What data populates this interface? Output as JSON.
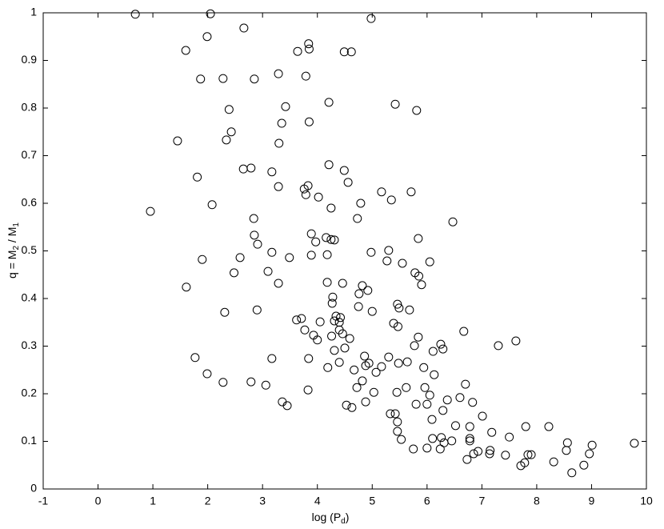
{
  "chart_data": {
    "type": "scatter",
    "x_label_parts": [
      "log (P",
      "d",
      ")"
    ],
    "y_label_parts": [
      "q = M",
      "2",
      " / M",
      "1"
    ],
    "xlim": [
      -1,
      10
    ],
    "ylim": [
      0,
      1
    ],
    "xticks": [
      -1,
      0,
      1,
      2,
      3,
      4,
      5,
      6,
      7,
      8,
      9,
      10
    ],
    "yticks": [
      0,
      0.1,
      0.2,
      0.3,
      0.4,
      0.5,
      0.6,
      0.7,
      0.8,
      0.9,
      1
    ],
    "grid": false,
    "color": "#000000",
    "marker": "open-circle",
    "x": [
      0.68,
      2.05,
      4.98,
      2.66,
      1.99,
      3.84,
      3.85,
      1.6,
      3.64,
      4.49,
      4.62,
      3.29,
      3.79,
      1.87,
      2.28,
      2.85,
      4.21,
      5.42,
      3.42,
      2.39,
      5.81,
      3.85,
      3.35,
      2.43,
      2.34,
      1.45,
      3.3,
      1.81,
      2.65,
      2.79,
      4.21,
      3.17,
      4.49,
      3.29,
      3.76,
      3.83,
      4.56,
      3.79,
      4.02,
      5.17,
      5.71,
      4.79,
      5.35,
      4.25,
      2.08,
      0.955,
      4.73,
      2.84,
      6.47,
      2.85,
      3.89,
      4.16,
      4.25,
      4.31,
      5.84,
      3.97,
      2.91,
      5.3,
      3.17,
      4.98,
      4.18,
      3.89,
      1.9,
      2.59,
      3.49,
      5.27,
      5.55,
      6.05,
      2.48,
      3.1,
      5.78,
      5.85,
      4.18,
      3.29,
      4.46,
      5.9,
      1.61,
      4.82,
      4.92,
      4.76,
      4.28,
      4.27,
      5.46,
      5.49,
      4.75,
      5.68,
      5.0,
      2.31,
      2.9,
      4.34,
      3.71,
      4.42,
      3.62,
      4.31,
      4.4,
      4.05,
      5.39,
      5.47,
      4.4,
      3.77,
      4.46,
      3.93,
      4.26,
      4.0,
      4.59,
      5.84,
      6.67,
      7.62,
      3.84,
      5.77,
      6.25,
      6.29,
      7.3,
      4.5,
      4.31,
      6.11,
      5.3,
      4.86,
      3.17,
      1.77,
      4.4,
      4.94,
      5.64,
      5.48,
      4.88,
      5.17,
      5.94,
      4.19,
      6.13,
      4.67,
      5.07,
      1.99,
      6.7,
      2.79,
      2.28,
      4.82,
      3.06,
      5.96,
      5.62,
      3.83,
      5.03,
      5.45,
      4.72,
      6.05,
      6.6,
      6.83,
      6.37,
      6.0,
      4.88,
      3.36,
      3.45,
      4.53,
      4.63,
      5.8,
      6.29,
      5.33,
      5.42,
      7.01,
      5.46,
      6.09,
      6.52,
      7.8,
      6.78,
      8.22,
      5.46,
      7.18,
      6.26,
      7.5,
      6.1,
      6.78,
      5.53,
      6.45,
      6.31,
      8.56,
      6.78,
      9.01,
      9.78,
      5.75,
      6.0,
      6.24,
      8.54,
      7.15,
      6.93,
      6.85,
      8.96,
      7.43,
      7.14,
      7.84,
      7.9,
      6.73,
      8.31,
      7.78,
      7.71,
      8.86,
      8.64
    ],
    "y": [
      0.997,
      0.998,
      0.988,
      0.968,
      0.95,
      0.935,
      0.924,
      0.921,
      0.919,
      0.918,
      0.918,
      0.872,
      0.867,
      0.861,
      0.862,
      0.861,
      0.812,
      0.808,
      0.803,
      0.797,
      0.795,
      0.771,
      0.768,
      0.75,
      0.733,
      0.731,
      0.726,
      0.655,
      0.672,
      0.674,
      0.681,
      0.666,
      0.669,
      0.635,
      0.63,
      0.637,
      0.644,
      0.618,
      0.613,
      0.624,
      0.624,
      0.6,
      0.607,
      0.59,
      0.597,
      0.583,
      0.568,
      0.568,
      0.561,
      0.533,
      0.536,
      0.528,
      0.524,
      0.523,
      0.526,
      0.519,
      0.514,
      0.501,
      0.497,
      0.497,
      0.492,
      0.491,
      0.482,
      0.486,
      0.486,
      0.479,
      0.474,
      0.477,
      0.454,
      0.457,
      0.454,
      0.447,
      0.434,
      0.432,
      0.432,
      0.429,
      0.424,
      0.427,
      0.417,
      0.41,
      0.403,
      0.39,
      0.388,
      0.38,
      0.383,
      0.376,
      0.373,
      0.371,
      0.376,
      0.363,
      0.358,
      0.36,
      0.355,
      0.353,
      0.35,
      0.351,
      0.348,
      0.341,
      0.334,
      0.334,
      0.326,
      0.323,
      0.321,
      0.313,
      0.316,
      0.319,
      0.331,
      0.311,
      0.274,
      0.301,
      0.304,
      0.294,
      0.301,
      0.296,
      0.291,
      0.289,
      0.277,
      0.279,
      0.274,
      0.276,
      0.266,
      0.264,
      0.267,
      0.264,
      0.259,
      0.257,
      0.255,
      0.255,
      0.24,
      0.25,
      0.245,
      0.242,
      0.22,
      0.225,
      0.224,
      0.227,
      0.218,
      0.213,
      0.213,
      0.208,
      0.203,
      0.203,
      0.213,
      0.197,
      0.192,
      0.182,
      0.187,
      0.178,
      0.183,
      0.183,
      0.175,
      0.176,
      0.171,
      0.178,
      0.165,
      0.158,
      0.158,
      0.153,
      0.141,
      0.146,
      0.133,
      0.131,
      0.131,
      0.131,
      0.121,
      0.119,
      0.108,
      0.109,
      0.106,
      0.106,
      0.104,
      0.101,
      0.097,
      0.097,
      0.101,
      0.092,
      0.096,
      0.084,
      0.086,
      0.084,
      0.081,
      0.081,
      0.079,
      0.074,
      0.074,
      0.071,
      0.074,
      0.072,
      0.072,
      0.062,
      0.057,
      0.055,
      0.049,
      0.05,
      0.034
    ]
  }
}
